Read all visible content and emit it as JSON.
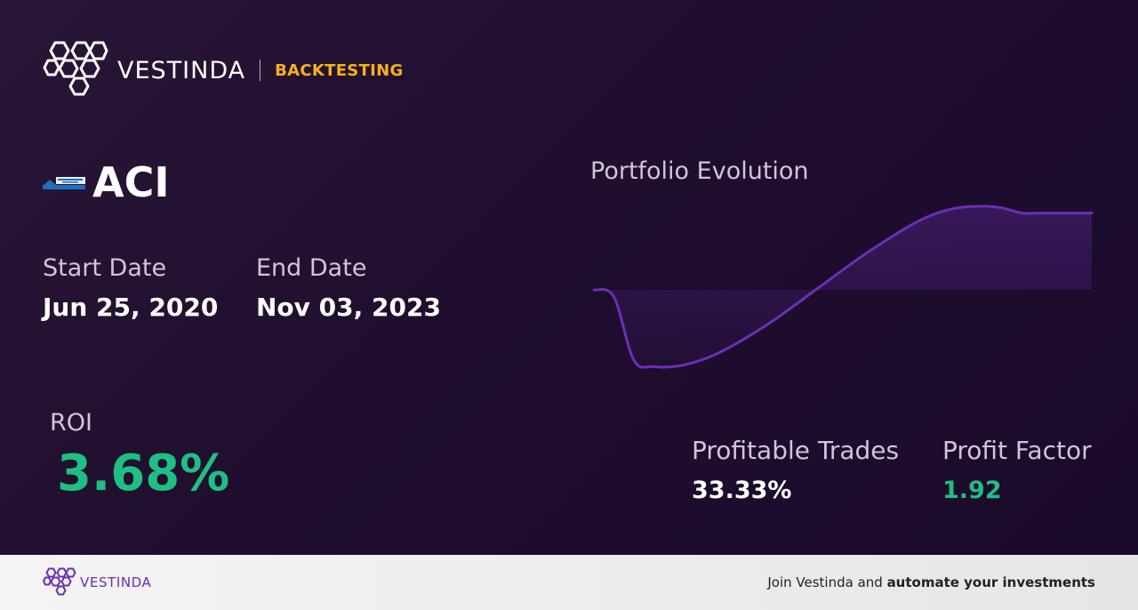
{
  "brand": {
    "name": "VESTINDA",
    "tag": "BACKTESTING",
    "tag_color": "#f5b21a"
  },
  "ticker": {
    "symbol": "ACI",
    "logo_icon": "albertsons-logo"
  },
  "dates": {
    "start_label": "Start Date",
    "start_value": "Jun 25, 2020",
    "end_label": "End Date",
    "end_value": "Nov 03, 2023"
  },
  "roi": {
    "label": "ROI",
    "value": "3.68%",
    "color": "#1fbf84"
  },
  "chart": {
    "title": "Portfolio Evolution",
    "line_color": "#6b2fb3"
  },
  "chart_data": {
    "type": "area",
    "title": "Portfolio Evolution",
    "x": [
      0,
      0.04,
      0.08,
      0.12,
      0.18,
      0.25,
      0.35,
      0.45,
      0.55,
      0.65,
      0.72,
      0.78,
      0.82,
      0.86,
      0.9,
      1.0
    ],
    "series": [
      {
        "values": [
          0,
          -0.08,
          -0.82,
          -0.9,
          -0.88,
          -0.74,
          -0.4,
          0.02,
          0.44,
          0.8,
          0.95,
          0.98,
          0.96,
          0.9,
          0.9,
          0.9
        ]
      }
    ],
    "xlabel": "",
    "ylabel": "",
    "grid": false,
    "legend": "none"
  },
  "stats": {
    "profitable_label": "Profitable Trades",
    "profitable_value": "33.33%",
    "profitable_color": "#ffffff",
    "factor_label": "Profit Factor",
    "factor_value": "1.92",
    "factor_color": "#1fbf84"
  },
  "footer": {
    "brand_name": "VESTINDA",
    "cta_prefix": "Join Vestinda and ",
    "cta_bold": "automate your investments"
  }
}
